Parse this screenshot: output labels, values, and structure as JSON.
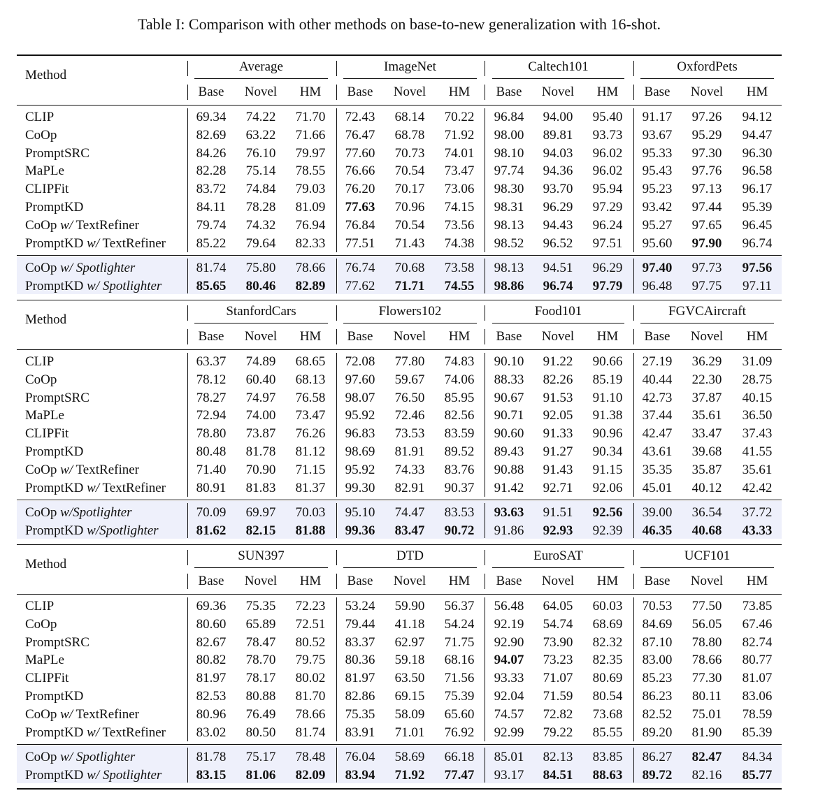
{
  "caption": "Table I: Comparison with other methods on base-to-new generalization with 16-shot.",
  "method_header": "Method",
  "sub_headers": [
    "Base",
    "Novel",
    "HM"
  ],
  "blocks": [
    {
      "datasets": [
        "Average",
        "ImageNet",
        "Caltech101",
        "OxfordPets"
      ],
      "rows": [
        {
          "method": "CLIP",
          "values": [
            "69.34",
            "74.22",
            "71.70",
            "72.43",
            "68.14",
            "70.22",
            "96.84",
            "94.00",
            "95.40",
            "91.17",
            "97.26",
            "94.12"
          ],
          "bold": []
        },
        {
          "method": "CoOp",
          "values": [
            "82.69",
            "63.22",
            "71.66",
            "76.47",
            "68.78",
            "71.92",
            "98.00",
            "89.81",
            "93.73",
            "93.67",
            "95.29",
            "94.47"
          ],
          "bold": []
        },
        {
          "method": "PromptSRC",
          "values": [
            "84.26",
            "76.10",
            "79.97",
            "77.60",
            "70.73",
            "74.01",
            "98.10",
            "94.03",
            "96.02",
            "95.33",
            "97.30",
            "96.30"
          ],
          "bold": []
        },
        {
          "method": "MaPLe",
          "values": [
            "82.28",
            "75.14",
            "78.55",
            "76.66",
            "70.54",
            "73.47",
            "97.74",
            "94.36",
            "96.02",
            "95.43",
            "97.76",
            "96.58"
          ],
          "bold": []
        },
        {
          "method": "CLIPFit",
          "values": [
            "83.72",
            "74.84",
            "79.03",
            "76.20",
            "70.17",
            "73.06",
            "98.30",
            "93.70",
            "95.94",
            "95.23",
            "97.13",
            "96.17"
          ],
          "bold": []
        },
        {
          "method": "PromptKD",
          "values": [
            "84.11",
            "78.28",
            "81.09",
            "77.63",
            "70.96",
            "74.15",
            "98.31",
            "96.29",
            "97.29",
            "93.42",
            "97.44",
            "95.39"
          ],
          "bold": [
            3
          ]
        },
        {
          "method": "CoOp w/ TextRefiner",
          "values": [
            "79.74",
            "74.32",
            "76.94",
            "76.84",
            "70.54",
            "73.56",
            "98.13",
            "94.43",
            "96.24",
            "95.27",
            "97.65",
            "96.45"
          ],
          "bold": []
        },
        {
          "method": "PromptKD w/ TextRefiner",
          "values": [
            "85.22",
            "79.64",
            "82.33",
            "77.51",
            "71.43",
            "74.38",
            "98.52",
            "96.52",
            "97.51",
            "95.60",
            "97.90",
            "96.74"
          ],
          "bold": [
            10
          ]
        },
        {
          "method": "CoOp w/ Spotlighter",
          "values": [
            "81.74",
            "75.80",
            "78.66",
            "76.74",
            "70.68",
            "73.58",
            "98.13",
            "94.51",
            "96.29",
            "97.40",
            "97.73",
            "97.56"
          ],
          "bold": [
            9,
            11
          ]
        },
        {
          "method": "PromptKD w/ Spotlighter",
          "values": [
            "85.65",
            "80.46",
            "82.89",
            "77.62",
            "71.71",
            "74.55",
            "98.86",
            "96.74",
            "97.79",
            "96.48",
            "97.75",
            "97.11"
          ],
          "bold": [
            0,
            1,
            2,
            4,
            5,
            6,
            7,
            8
          ]
        }
      ]
    },
    {
      "datasets": [
        "StanfordCars",
        "Flowers102",
        "Food101",
        "FGVCAircraft"
      ],
      "rows": [
        {
          "method": "CLIP",
          "values": [
            "63.37",
            "74.89",
            "68.65",
            "72.08",
            "77.80",
            "74.83",
            "90.10",
            "91.22",
            "90.66",
            "27.19",
            "36.29",
            "31.09"
          ],
          "bold": []
        },
        {
          "method": "CoOp",
          "values": [
            "78.12",
            "60.40",
            "68.13",
            "97.60",
            "59.67",
            "74.06",
            "88.33",
            "82.26",
            "85.19",
            "40.44",
            "22.30",
            "28.75"
          ],
          "bold": []
        },
        {
          "method": "PromptSRC",
          "values": [
            "78.27",
            "74.97",
            "76.58",
            "98.07",
            "76.50",
            "85.95",
            "90.67",
            "91.53",
            "91.10",
            "42.73",
            "37.87",
            "40.15"
          ],
          "bold": []
        },
        {
          "method": "MaPLe",
          "values": [
            "72.94",
            "74.00",
            "73.47",
            "95.92",
            "72.46",
            "82.56",
            "90.71",
            "92.05",
            "91.38",
            "37.44",
            "35.61",
            "36.50"
          ],
          "bold": []
        },
        {
          "method": "CLIPFit",
          "values": [
            "78.80",
            "73.87",
            "76.26",
            "96.83",
            "73.53",
            "83.59",
            "90.60",
            "91.33",
            "90.96",
            "42.47",
            "33.47",
            "37.43"
          ],
          "bold": []
        },
        {
          "method": "PromptKD",
          "values": [
            "80.48",
            "81.78",
            "81.12",
            "98.69",
            "81.91",
            "89.52",
            "89.43",
            "91.27",
            "90.34",
            "43.61",
            "39.68",
            "41.55"
          ],
          "bold": []
        },
        {
          "method": "CoOp w/ TextRefiner",
          "values": [
            "71.40",
            "70.90",
            "71.15",
            "95.92",
            "74.33",
            "83.76",
            "90.88",
            "91.43",
            "91.15",
            "35.35",
            "35.87",
            "35.61"
          ],
          "bold": []
        },
        {
          "method": "PromptKD w/ TextRefiner",
          "values": [
            "80.91",
            "81.83",
            "81.37",
            "99.30",
            "82.91",
            "90.37",
            "91.42",
            "92.71",
            "92.06",
            "45.01",
            "40.12",
            "42.42"
          ],
          "bold": []
        },
        {
          "method": "CoOp w/Spotlighter",
          "values": [
            "70.09",
            "69.97",
            "70.03",
            "95.10",
            "74.47",
            "83.53",
            "93.63",
            "91.51",
            "92.56",
            "39.00",
            "36.54",
            "37.72"
          ],
          "bold": [
            6,
            8
          ]
        },
        {
          "method": "PromptKD w/Spotlighter",
          "values": [
            "81.62",
            "82.15",
            "81.88",
            "99.36",
            "83.47",
            "90.72",
            "91.86",
            "92.93",
            "92.39",
            "46.35",
            "40.68",
            "43.33"
          ],
          "bold": [
            0,
            1,
            2,
            3,
            4,
            5,
            7,
            9,
            10,
            11
          ]
        }
      ]
    },
    {
      "datasets": [
        "SUN397",
        "DTD",
        "EuroSAT",
        "UCF101"
      ],
      "rows": [
        {
          "method": "CLIP",
          "values": [
            "69.36",
            "75.35",
            "72.23",
            "53.24",
            "59.90",
            "56.37",
            "56.48",
            "64.05",
            "60.03",
            "70.53",
            "77.50",
            "73.85"
          ],
          "bold": []
        },
        {
          "method": "CoOp",
          "values": [
            "80.60",
            "65.89",
            "72.51",
            "79.44",
            "41.18",
            "54.24",
            "92.19",
            "54.74",
            "68.69",
            "84.69",
            "56.05",
            "67.46"
          ],
          "bold": []
        },
        {
          "method": "PromptSRC",
          "values": [
            "82.67",
            "78.47",
            "80.52",
            "83.37",
            "62.97",
            "71.75",
            "92.90",
            "73.90",
            "82.32",
            "87.10",
            "78.80",
            "82.74"
          ],
          "bold": []
        },
        {
          "method": "MaPLe",
          "values": [
            "80.82",
            "78.70",
            "79.75",
            "80.36",
            "59.18",
            "68.16",
            "94.07",
            "73.23",
            "82.35",
            "83.00",
            "78.66",
            "80.77"
          ],
          "bold": [
            6
          ]
        },
        {
          "method": "CLIPFit",
          "values": [
            "81.97",
            "78.17",
            "80.02",
            "81.97",
            "63.50",
            "71.56",
            "93.33",
            "71.07",
            "80.69",
            "85.23",
            "77.30",
            "81.07"
          ],
          "bold": []
        },
        {
          "method": "PromptKD",
          "values": [
            "82.53",
            "80.88",
            "81.70",
            "82.86",
            "69.15",
            "75.39",
            "92.04",
            "71.59",
            "80.54",
            "86.23",
            "80.11",
            "83.06"
          ],
          "bold": []
        },
        {
          "method": "CoOp w/ TextRefiner",
          "values": [
            "80.96",
            "76.49",
            "78.66",
            "75.35",
            "58.09",
            "65.60",
            "74.57",
            "72.82",
            "73.68",
            "82.52",
            "75.01",
            "78.59"
          ],
          "bold": []
        },
        {
          "method": "PromptKD w/ TextRefiner",
          "values": [
            "83.02",
            "80.50",
            "81.74",
            "83.91",
            "71.01",
            "76.92",
            "92.99",
            "79.22",
            "85.55",
            "89.20",
            "81.90",
            "85.39"
          ],
          "bold": []
        },
        {
          "method": "CoOp w/ Spotlighter",
          "values": [
            "81.78",
            "75.17",
            "78.48",
            "76.04",
            "58.69",
            "66.18",
            "85.01",
            "82.13",
            "83.85",
            "86.27",
            "82.47",
            "84.34"
          ],
          "bold": [
            10
          ]
        },
        {
          "method": "PromptKD w/ Spotlighter",
          "values": [
            "83.15",
            "81.06",
            "82.09",
            "83.94",
            "71.92",
            "77.47",
            "93.17",
            "84.51",
            "88.63",
            "89.72",
            "82.16",
            "85.77"
          ],
          "bold": [
            0,
            1,
            2,
            3,
            4,
            5,
            7,
            8,
            9,
            11
          ]
        }
      ]
    }
  ]
}
